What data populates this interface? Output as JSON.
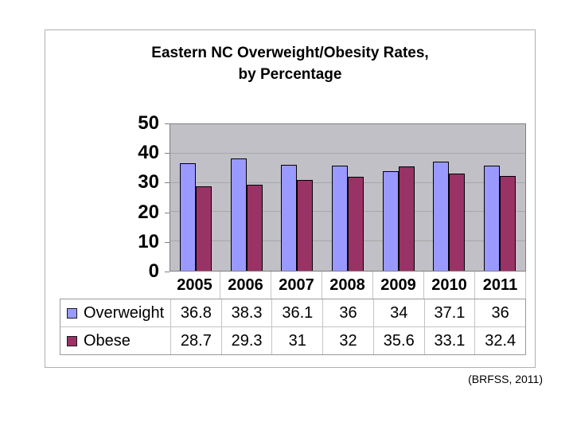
{
  "title": {
    "line1": "Eastern NC Overweight/Obesity Rates,",
    "line2": "by Percentage"
  },
  "citation": "(BRFSS, 2011)",
  "colors": {
    "overweight": "#9999FF",
    "obese": "#993366",
    "plot_background": "#C0C0C6",
    "gridline": "#A8A8A8"
  },
  "chart_data": {
    "type": "bar",
    "title": "Eastern NC Overweight/Obesity Rates, by Percentage",
    "categories": [
      "2005",
      "2006",
      "2007",
      "2008",
      "2009",
      "2010",
      "2011"
    ],
    "series": [
      {
        "name": "Overweight",
        "color": "#9999FF",
        "values": [
          36.8,
          38.3,
          36.1,
          36,
          34,
          37.1,
          36
        ]
      },
      {
        "name": "Obese",
        "color": "#993366",
        "values": [
          28.7,
          29.3,
          31,
          32,
          35.6,
          33.1,
          32.4
        ]
      }
    ],
    "xlabel": "",
    "ylabel": "",
    "ylim": [
      0,
      50
    ],
    "yticks": [
      0,
      10,
      20,
      30,
      40,
      50
    ],
    "grid": true,
    "plot_bg": "#C0C0C6",
    "legend_position": "data-table-left",
    "data_table_shown": true
  }
}
